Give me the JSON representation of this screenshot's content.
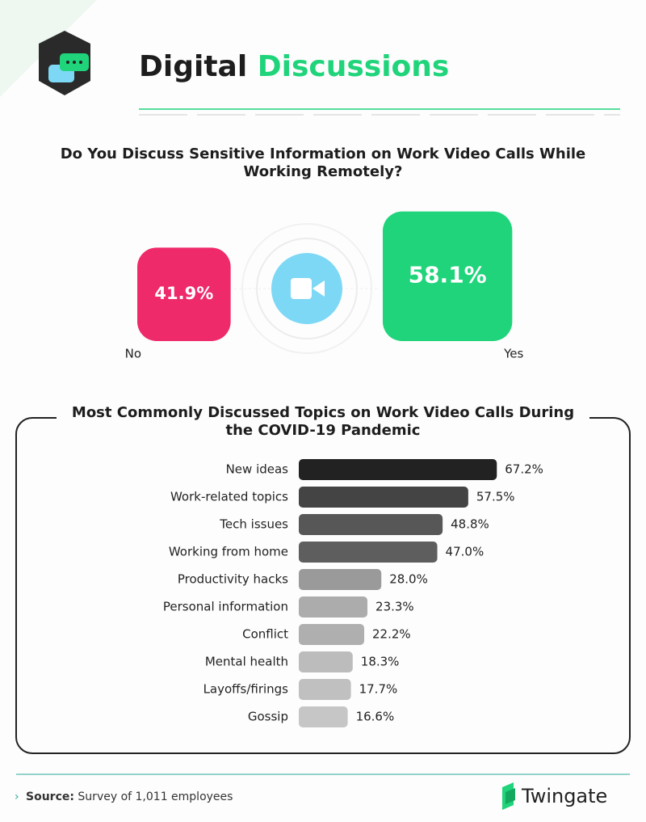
{
  "header": {
    "title_part_1": "Digital",
    "title_part_2": "Discussions"
  },
  "chart_data": [
    {
      "type": "square",
      "title": "Do You Discuss Sensitive Information on Work Video Calls While Working Remotely?",
      "categories": [
        "No",
        "Yes"
      ],
      "values": [
        41.9,
        58.1
      ],
      "value_labels": [
        "41.9%",
        "58.1%"
      ],
      "colors": [
        "#ee2a6b",
        "#1fd47a"
      ]
    },
    {
      "type": "bar",
      "title": "Most Commonly Discussed Topics on Work Video Calls During the COVID-19 Pandemic",
      "categories": [
        "New ideas",
        "Work-related topics",
        "Tech issues",
        "Working from home",
        "Productivity hacks",
        "Personal information",
        "Conflict",
        "Mental health",
        "Layoffs/firings",
        "Gossip"
      ],
      "values": [
        67.2,
        57.5,
        48.8,
        47.0,
        28.0,
        23.3,
        22.2,
        18.3,
        17.7,
        16.6
      ],
      "value_labels": [
        "67.2%",
        "57.5%",
        "48.8%",
        "47.0%",
        "28.0%",
        "23.3%",
        "22.2%",
        "18.3%",
        "17.7%",
        "16.6%"
      ],
      "colors": [
        "#222222",
        "#444444",
        "#575757",
        "#5e5e5e",
        "#9a9a9a",
        "#acacac",
        "#afafaf",
        "#bcbcbc",
        "#c0c0c0",
        "#c6c6c6"
      ]
    }
  ],
  "footer": {
    "source_label": "Source:",
    "source_text": "Survey of 1,011 employees",
    "brand": "Twingate"
  }
}
